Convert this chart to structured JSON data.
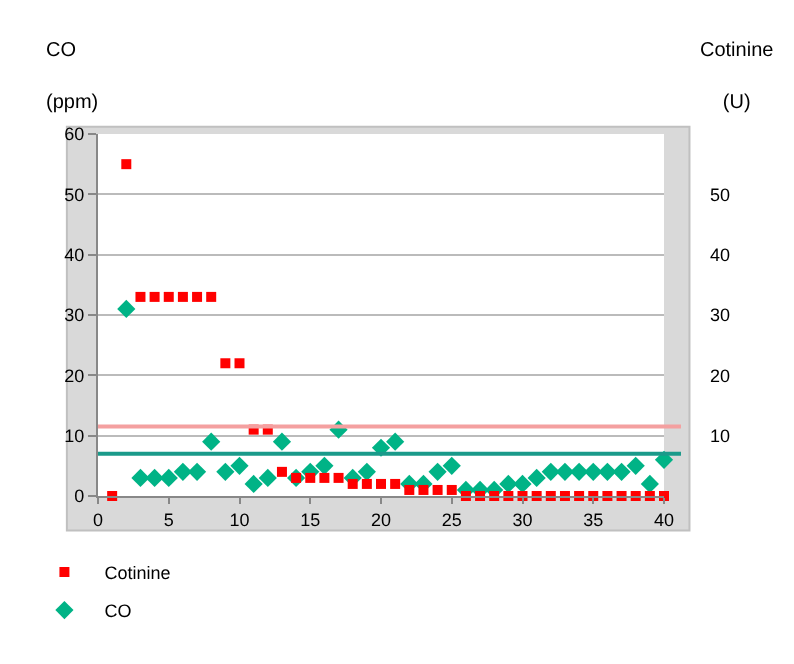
{
  "chart_data": {
    "type": "scatter",
    "ylabel": "CO\n(ppm)",
    "y2label": "Cotinine\n(U)",
    "x": [
      1,
      2,
      3,
      4,
      5,
      6,
      7,
      8,
      9,
      10,
      11,
      12,
      13,
      14,
      15,
      16,
      17,
      18,
      19,
      20,
      21,
      22,
      23,
      24,
      25,
      26,
      27,
      28,
      29,
      30,
      31,
      32,
      33,
      34,
      35,
      36,
      37,
      38,
      39,
      40
    ],
    "series": [
      {
        "name": "Cotinine",
        "color": "#ff0000",
        "marker": "square",
        "values": [
          0,
          55,
          33,
          33,
          33,
          33,
          33,
          33,
          22,
          22,
          11,
          11,
          4,
          3,
          3,
          3,
          3,
          2,
          2,
          2,
          2,
          1,
          1,
          1,
          1,
          0,
          0,
          0,
          0,
          0,
          0,
          0,
          0,
          0,
          0,
          0,
          0,
          0,
          0,
          0
        ]
      },
      {
        "name": "CO",
        "color": "#00b386",
        "marker": "diamond",
        "values": [
          null,
          31,
          3,
          3,
          3,
          4,
          4,
          9,
          4,
          5,
          2,
          3,
          9,
          3,
          4,
          5,
          11,
          3,
          4,
          8,
          9,
          2,
          2,
          4,
          5,
          1,
          1,
          1,
          2,
          2,
          3,
          4,
          4,
          4,
          4,
          4,
          4,
          5,
          2,
          6
        ]
      }
    ],
    "xlim": [
      0,
      40
    ],
    "xticks": [
      0,
      5,
      10,
      15,
      20,
      25,
      30,
      35,
      40
    ],
    "ylim": [
      0,
      60
    ],
    "yticks": [
      0,
      10,
      20,
      30,
      40,
      50,
      60
    ],
    "y2lim": [
      0,
      60
    ],
    "y2ticks": [
      10,
      20,
      30,
      40,
      50
    ],
    "ref_lines": [
      {
        "axis": "y",
        "value": 11.5,
        "color": "#f4a0a0"
      },
      {
        "axis": "y",
        "value": 7,
        "color": "#1a9a8a"
      }
    ],
    "grid": true,
    "legend": "bottom left"
  }
}
